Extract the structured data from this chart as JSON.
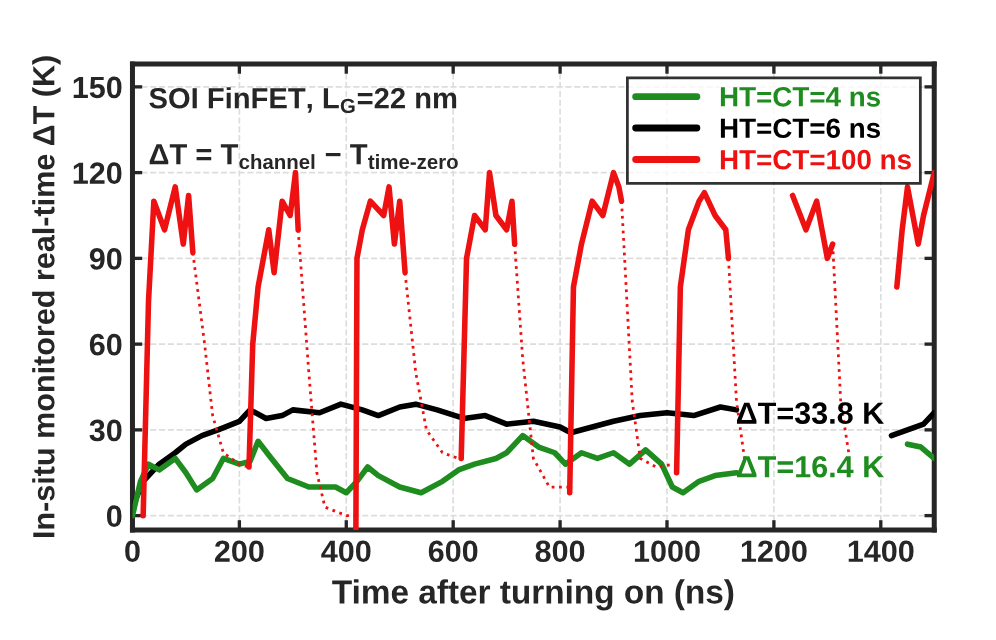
{
  "chart_data": {
    "type": "line",
    "xlabel": "Time after turning on (ns)",
    "ylabel": "In-situ monitored real-time ΔT (K)",
    "xlim": [
      0,
      1500
    ],
    "xticks": [
      0,
      200,
      400,
      600,
      800,
      1000,
      1200,
      1400
    ],
    "ylim": [
      -5,
      158
    ],
    "yticks": [
      0,
      30,
      60,
      90,
      120,
      150
    ],
    "grid": true,
    "legend": "top right",
    "line_style": "solid",
    "annotations": [
      "SOI FinFET, L$_{G}$=22 nm",
      "ΔT = T$_{channel}$ − T$_{time‐zero}$",
      "ΔT=33.8 K",
      "ΔT=16.4 K"
    ],
    "series": [
      {
        "name": "HT=CT=4 ns",
        "color": "#1e8c1e",
        "x": [
          0,
          15,
          30,
          50,
          80,
          100,
          120,
          150,
          170,
          200,
          220,
          235,
          260,
          290,
          330,
          380,
          400,
          420,
          440,
          460,
          500,
          540,
          580,
          610,
          640,
          680,
          700,
          730,
          760,
          790,
          810,
          840,
          870,
          900,
          930,
          960,
          990,
          1010,
          1030,
          1060,
          1090,
          1130,
          1300,
          1450,
          1475,
          1500
        ],
        "values": [
          0,
          12,
          18,
          16,
          20,
          15,
          9,
          13,
          20,
          18,
          19,
          26,
          20,
          13,
          10,
          10,
          8,
          12,
          17,
          14,
          10,
          8,
          12,
          16,
          18,
          20,
          22,
          28,
          24,
          22,
          18,
          22,
          20,
          22,
          18,
          23,
          18,
          10,
          8,
          12,
          14,
          15,
          null,
          25,
          24,
          20
        ]
      },
      {
        "name": "HT=CT=6 ns",
        "color": "#000000",
        "x": [
          0,
          20,
          50,
          80,
          100,
          130,
          160,
          200,
          220,
          250,
          280,
          300,
          350,
          390,
          430,
          460,
          500,
          530,
          570,
          620,
          660,
          700,
          750,
          800,
          820,
          860,
          900,
          950,
          1000,
          1050,
          1100,
          1130,
          1300,
          1420,
          1450,
          1480,
          1500
        ],
        "values": [
          3,
          12,
          18,
          22,
          25,
          28,
          30,
          33,
          37,
          34,
          35,
          37,
          36,
          39,
          37,
          35,
          38,
          39,
          37,
          34,
          35,
          32,
          33,
          31,
          29,
          31,
          33,
          35,
          36,
          35,
          38,
          37,
          null,
          28,
          30,
          32,
          36
        ]
      },
      {
        "name": "HT=CT=100 ns",
        "color": "#ee1111",
        "x": [
          20,
          30,
          40,
          60,
          80,
          95,
          105,
          113,
          170,
          218,
          225,
          235,
          255,
          265,
          280,
          295,
          305,
          310,
          360,
          418,
          420,
          430,
          445,
          470,
          480,
          490,
          500,
          510,
          560,
          615,
          625,
          640,
          660,
          668,
          680,
          700,
          710,
          715,
          760,
          818,
          825,
          840,
          860,
          880,
          900,
          910,
          915,
          960,
          1018,
          1025,
          1040,
          1060,
          1070,
          1090,
          1110,
          1115,
          1160,
          1220,
          1235,
          1260,
          1280,
          1300,
          1310,
          1360,
          1420,
          1430,
          1440,
          1450,
          1470,
          1480,
          1500
        ],
        "values": [
          0,
          75,
          110,
          100,
          115,
          95,
          112,
          92,
          null,
          17,
          60,
          80,
          100,
          85,
          110,
          105,
          120,
          100,
          null,
          -5,
          90,
          100,
          110,
          105,
          115,
          95,
          110,
          85,
          null,
          20,
          90,
          105,
          100,
          120,
          105,
          100,
          110,
          95,
          null,
          8,
          80,
          95,
          110,
          105,
          120,
          115,
          110,
          null,
          15,
          80,
          100,
          110,
          113,
          105,
          100,
          90,
          null,
          null,
          112,
          100,
          110,
          90,
          95,
          null,
          null,
          80,
          100,
          115,
          95,
          105,
          120
        ]
      },
      {
        "color": "#ee1111",
        "line_style": "dotted",
        "x": [
          113,
          135,
          150,
          170,
          200,
          218,
          260,
          310,
          330,
          345,
          360,
          400,
          415,
          460,
          510,
          530,
          550,
          580,
          610,
          660,
          715,
          730,
          750,
          780,
          815,
          860,
          915,
          935,
          950,
          980,
          1015,
          1060,
          1115,
          1130,
          1145,
          1180,
          1215,
          1260,
          1310,
          1325,
          1340
        ],
        "values": [
          92,
          60,
          35,
          22,
          18,
          17,
          null,
          100,
          50,
          15,
          3,
          0,
          0,
          null,
          85,
          50,
          30,
          22,
          20,
          null,
          95,
          55,
          20,
          10,
          10,
          null,
          110,
          40,
          20,
          17,
          18,
          null,
          90,
          40,
          20,
          null,
          null,
          null,
          95,
          40,
          22
        ]
      }
    ]
  }
}
